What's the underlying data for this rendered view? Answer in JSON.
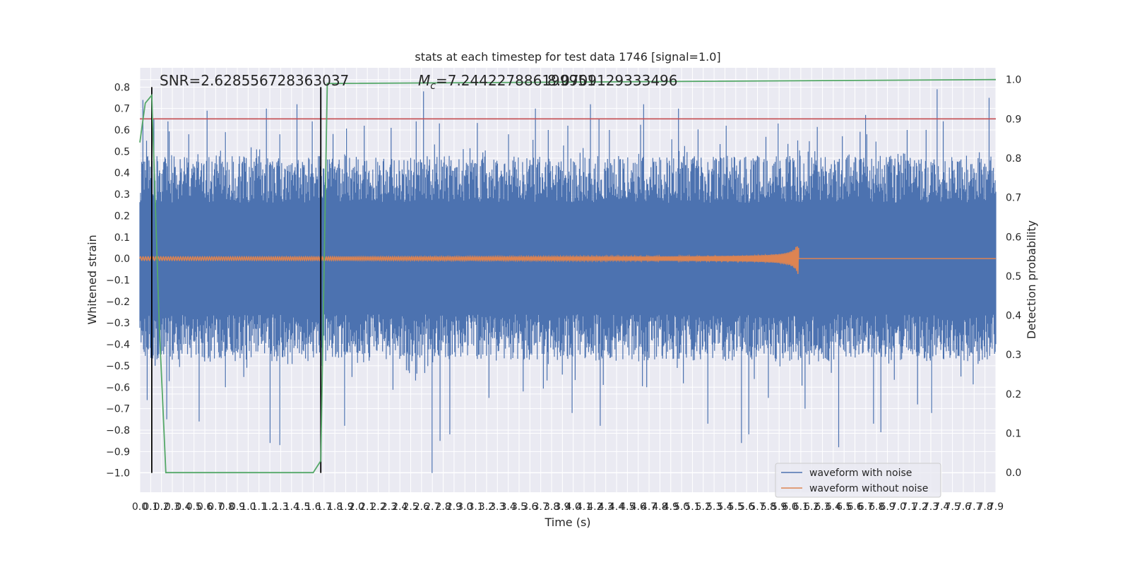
{
  "chart_data": {
    "type": "line",
    "title": "stats at each timestep for test data 1746 [signal=1.0]",
    "xlabel": "Time (s)",
    "ylabel": "Whitened strain",
    "y2label": "Detection probability",
    "xlim": [
      0.0,
      7.9
    ],
    "ylim": [
      -1.09,
      0.89
    ],
    "y2lim": [
      -0.05,
      1.03
    ],
    "grid": true,
    "x_ticks": [
      "0.0",
      "0.1",
      "0.2",
      "0.3",
      "0.4",
      "0.5",
      "0.6",
      "0.7",
      "0.8",
      "0.9",
      "1.0",
      "1.1",
      "1.2",
      "1.3",
      "1.4",
      "1.5",
      "1.6",
      "1.7",
      "1.8",
      "1.9",
      "2.0",
      "2.1",
      "2.2",
      "2.3",
      "2.4",
      "2.5",
      "2.6",
      "2.7",
      "2.8",
      "2.9",
      "3.0",
      "3.1",
      "3.2",
      "3.3",
      "3.4",
      "3.5",
      "3.6",
      "3.7",
      "3.8",
      "3.9",
      "4.0",
      "4.1",
      "4.2",
      "4.3",
      "4.4",
      "4.5",
      "4.6",
      "4.7",
      "4.8",
      "4.9",
      "5.0",
      "5.1",
      "5.2",
      "5.3",
      "5.4",
      "5.5",
      "5.6",
      "5.7",
      "5.8",
      "5.9",
      "6.0",
      "6.1",
      "6.2",
      "6.3",
      "6.4",
      "6.5",
      "6.6",
      "6.7",
      "6.8",
      "6.9",
      "7.0",
      "7.1",
      "7.2",
      "7.3",
      "7.4",
      "7.5",
      "7.6",
      "7.7",
      "7.8",
      "7.9"
    ],
    "y_ticks": [
      "0.8",
      "0.7",
      "0.6",
      "0.5",
      "0.4",
      "0.3",
      "0.2",
      "0.1",
      "0.0",
      "−0.1",
      "−0.2",
      "−0.3",
      "−0.4",
      "−0.5",
      "−0.6",
      "−0.7",
      "−0.8",
      "−0.9",
      "−1.0"
    ],
    "y2_ticks": [
      "1.0",
      "0.9",
      "0.8",
      "0.7",
      "0.6",
      "0.5",
      "0.4",
      "0.3",
      "0.2",
      "0.1",
      "0.0"
    ],
    "annotations": {
      "snr": "SNR=2.628556728363037",
      "mc_symbol": "M",
      "mc_sub": "c",
      "mc_value": "=7.244227886199951",
      "mc_overlap": "8.0709129333496"
    },
    "series": [
      {
        "name": "waveform with noise",
        "color": "#4c72b0",
        "noise_amplitude": 0.26,
        "peak_high": [
          [
            0.03,
            0.74
          ],
          [
            0.06,
            0.55
          ],
          [
            0.13,
            0.65
          ],
          [
            0.22,
            0.45
          ],
          [
            0.26,
            0.64
          ],
          [
            0.45,
            0.58
          ],
          [
            0.62,
            0.69
          ],
          [
            0.79,
            0.59
          ],
          [
            1.17,
            0.7
          ],
          [
            1.29,
            0.58
          ],
          [
            1.45,
            0.72
          ],
          [
            1.59,
            0.64
          ],
          [
            1.7,
            0.42
          ],
          [
            2.07,
            0.62
          ],
          [
            2.32,
            0.61
          ],
          [
            2.55,
            0.64
          ],
          [
            2.62,
            0.78
          ],
          [
            3.4,
            0.58
          ],
          [
            3.65,
            0.7
          ],
          [
            3.77,
            0.6
          ],
          [
            3.95,
            0.62
          ],
          [
            4.16,
            0.72
          ],
          [
            4.24,
            0.65
          ],
          [
            4.65,
            0.72
          ],
          [
            4.97,
            0.7
          ],
          [
            5.41,
            0.62
          ],
          [
            5.89,
            0.63
          ],
          [
            6.7,
            0.67
          ],
          [
            6.71,
            0.58
          ],
          [
            7.08,
            0.6
          ],
          [
            7.36,
            0.79
          ],
          [
            7.84,
            0.75
          ]
        ],
        "peak_low": [
          [
            0.07,
            -0.66
          ],
          [
            0.14,
            -0.5
          ],
          [
            0.25,
            -0.75
          ],
          [
            0.55,
            -0.76
          ],
          [
            0.79,
            -0.6
          ],
          [
            1.2,
            -0.86
          ],
          [
            1.29,
            -0.87
          ],
          [
            1.68,
            -0.5
          ],
          [
            1.89,
            -0.78
          ],
          [
            2.7,
            -1.0
          ],
          [
            2.77,
            -0.85
          ],
          [
            2.86,
            -0.82
          ],
          [
            3.22,
            -0.65
          ],
          [
            3.54,
            -0.62
          ],
          [
            3.99,
            -0.72
          ],
          [
            4.25,
            -0.78
          ],
          [
            4.68,
            -0.6
          ],
          [
            5.24,
            -0.77
          ],
          [
            5.55,
            -0.86
          ],
          [
            5.62,
            -0.82
          ],
          [
            5.8,
            -0.65
          ],
          [
            6.14,
            -0.7
          ],
          [
            6.45,
            -0.88
          ],
          [
            6.77,
            -0.77
          ],
          [
            6.84,
            -0.81
          ],
          [
            7.18,
            -0.68
          ],
          [
            7.31,
            -0.72
          ],
          [
            7.58,
            -0.55
          ],
          [
            7.82,
            -0.47
          ]
        ]
      },
      {
        "name": "waveform without noise",
        "color": "#dd8452",
        "chirp_end": 6.08,
        "chirp_peak_amplitude": 0.08
      },
      {
        "name": "detection probability",
        "color": "#55a868",
        "axis": "right",
        "x": [
          0.0,
          0.05,
          0.11,
          0.18,
          0.24,
          0.3,
          1.6,
          1.67,
          1.73,
          7.9
        ],
        "y": [
          0.84,
          0.94,
          0.96,
          0.37,
          0.0,
          0.0,
          0.0,
          0.03,
          0.99,
          1.0
        ]
      }
    ],
    "threshold": {
      "value": 0.9,
      "axis": "right",
      "color": "#c44e52"
    },
    "markers": {
      "x": [
        0.11,
        1.67
      ],
      "color": "#000000"
    },
    "legend": {
      "location": "lower right",
      "entries": [
        {
          "label": "waveform with noise",
          "color": "#4c72b0"
        },
        {
          "label": "waveform without noise",
          "color": "#dd8452"
        }
      ]
    }
  }
}
